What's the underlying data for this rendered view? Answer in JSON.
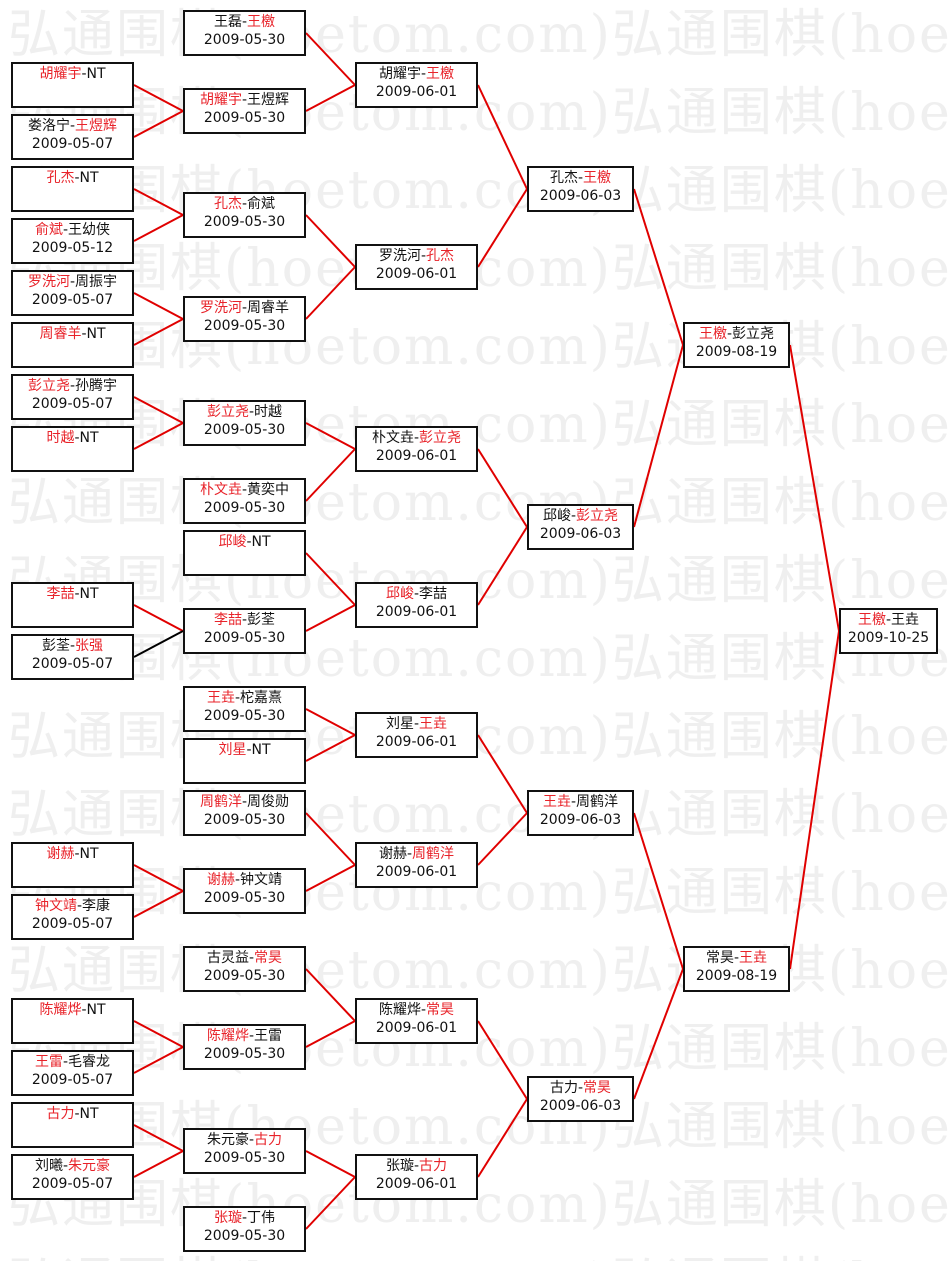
{
  "watermark": "弘通围棋(hoetom.com)",
  "colors": {
    "winner": "#e8232a",
    "link": "#e00000",
    "link_loser": "#000000",
    "border": "#111111"
  },
  "rounds": [
    {
      "matches": [
        {
          "id": "a1",
          "p1": "胡耀宇",
          "p2": "NT",
          "winner": 1,
          "date": "",
          "next": "b2"
        },
        {
          "id": "a2",
          "p1": "娄洛宁",
          "p2": "王煜辉",
          "winner": 2,
          "date": "2009-05-07",
          "next": "b2"
        },
        {
          "id": "a3",
          "p1": "孔杰",
          "p2": "NT",
          "winner": 1,
          "date": "",
          "next": "b3"
        },
        {
          "id": "a4",
          "p1": "俞斌",
          "p2": "王幼侠",
          "winner": 1,
          "date": "2009-05-12",
          "next": "b3"
        },
        {
          "id": "a5",
          "p1": "罗洗河",
          "p2": "周振宇",
          "winner": 1,
          "date": "2009-05-07",
          "next": "b4"
        },
        {
          "id": "a6",
          "p1": "周睿羊",
          "p2": "NT",
          "winner": 1,
          "date": "",
          "next": "b4"
        },
        {
          "id": "a7",
          "p1": "彭立尧",
          "p2": "孙腾宇",
          "winner": 1,
          "date": "2009-05-07",
          "next": "b5"
        },
        {
          "id": "a8",
          "p1": "时越",
          "p2": "NT",
          "winner": 1,
          "date": "",
          "next": "b5"
        },
        {
          "id": "a9",
          "p1": "李喆",
          "p2": "NT",
          "winner": 1,
          "date": "",
          "next": "b8"
        },
        {
          "id": "a10",
          "p1": "彭荃",
          "p2": "张强",
          "winner": 2,
          "date": "2009-05-07",
          "next": "b8",
          "link": "loser"
        },
        {
          "id": "a11",
          "p1": "谢赫",
          "p2": "NT",
          "winner": 1,
          "date": "",
          "next": "b12"
        },
        {
          "id": "a12",
          "p1": "钟文靖",
          "p2": "李康",
          "winner": 1,
          "date": "2009-05-07",
          "next": "b12"
        },
        {
          "id": "a13",
          "p1": "陈耀烨",
          "p2": "NT",
          "winner": 1,
          "date": "",
          "next": "b14"
        },
        {
          "id": "a14",
          "p1": "王雷",
          "p2": "毛睿龙",
          "winner": 1,
          "date": "2009-05-07",
          "next": "b14"
        },
        {
          "id": "a15",
          "p1": "古力",
          "p2": "NT",
          "winner": 1,
          "date": "",
          "next": "b15"
        },
        {
          "id": "a16",
          "p1": "刘曦",
          "p2": "朱元豪",
          "winner": 2,
          "date": "2009-05-07",
          "next": "b15"
        }
      ]
    },
    {
      "matches": [
        {
          "id": "b1",
          "p1": "王磊",
          "p2": "王檄",
          "winner": 2,
          "date": "2009-05-30",
          "next": "c1"
        },
        {
          "id": "b2",
          "p1": "胡耀宇",
          "p2": "王煜辉",
          "winner": 1,
          "date": "2009-05-30",
          "next": "c1"
        },
        {
          "id": "b3",
          "p1": "孔杰",
          "p2": "俞斌",
          "winner": 1,
          "date": "2009-05-30",
          "next": "c2"
        },
        {
          "id": "b4",
          "p1": "罗洗河",
          "p2": "周睿羊",
          "winner": 1,
          "date": "2009-05-30",
          "next": "c2"
        },
        {
          "id": "b5",
          "p1": "彭立尧",
          "p2": "时越",
          "winner": 1,
          "date": "2009-05-30",
          "next": "c3"
        },
        {
          "id": "b6",
          "p1": "朴文垚",
          "p2": "黄奕中",
          "winner": 1,
          "date": "2009-05-30",
          "next": "c3"
        },
        {
          "id": "b7",
          "p1": "邱峻",
          "p2": "NT",
          "winner": 1,
          "date": "",
          "next": "c4"
        },
        {
          "id": "b8",
          "p1": "李喆",
          "p2": "彭荃",
          "winner": 1,
          "date": "2009-05-30",
          "next": "c4"
        },
        {
          "id": "b9",
          "p1": "王垚",
          "p2": "柁嘉熹",
          "winner": 1,
          "date": "2009-05-30",
          "next": "c5"
        },
        {
          "id": "b10",
          "p1": "刘星",
          "p2": "NT",
          "winner": 1,
          "date": "",
          "next": "c5"
        },
        {
          "id": "b11",
          "p1": "周鹤洋",
          "p2": "周俊勋",
          "winner": 1,
          "date": "2009-05-30",
          "next": "c6"
        },
        {
          "id": "b12",
          "p1": "谢赫",
          "p2": "钟文靖",
          "winner": 1,
          "date": "2009-05-30",
          "next": "c6"
        },
        {
          "id": "b13",
          "p1": "古灵益",
          "p2": "常昊",
          "winner": 2,
          "date": "2009-05-30",
          "next": "c7"
        },
        {
          "id": "b14",
          "p1": "陈耀烨",
          "p2": "王雷",
          "winner": 1,
          "date": "2009-05-30",
          "next": "c7"
        },
        {
          "id": "b15",
          "p1": "朱元豪",
          "p2": "古力",
          "winner": 2,
          "date": "2009-05-30",
          "next": "c8"
        },
        {
          "id": "b16",
          "p1": "张璇",
          "p2": "丁伟",
          "winner": 1,
          "date": "2009-05-30",
          "next": "c8"
        }
      ]
    },
    {
      "matches": [
        {
          "id": "c1",
          "p1": "胡耀宇",
          "p2": "王檄",
          "winner": 2,
          "date": "2009-06-01",
          "next": "d1"
        },
        {
          "id": "c2",
          "p1": "罗洗河",
          "p2": "孔杰",
          "winner": 2,
          "date": "2009-06-01",
          "next": "d1"
        },
        {
          "id": "c3",
          "p1": "朴文垚",
          "p2": "彭立尧",
          "winner": 2,
          "date": "2009-06-01",
          "next": "d2"
        },
        {
          "id": "c4",
          "p1": "邱峻",
          "p2": "李喆",
          "winner": 1,
          "date": "2009-06-01",
          "next": "d2"
        },
        {
          "id": "c5",
          "p1": "刘星",
          "p2": "王垚",
          "winner": 2,
          "date": "2009-06-01",
          "next": "d3"
        },
        {
          "id": "c6",
          "p1": "谢赫",
          "p2": "周鹤洋",
          "winner": 2,
          "date": "2009-06-01",
          "next": "d3"
        },
        {
          "id": "c7",
          "p1": "陈耀烨",
          "p2": "常昊",
          "winner": 2,
          "date": "2009-06-01",
          "next": "d4"
        },
        {
          "id": "c8",
          "p1": "张璇",
          "p2": "古力",
          "winner": 2,
          "date": "2009-06-01",
          "next": "d4"
        }
      ]
    },
    {
      "matches": [
        {
          "id": "d1",
          "p1": "孔杰",
          "p2": "王檄",
          "winner": 2,
          "date": "2009-06-03",
          "next": "e1"
        },
        {
          "id": "d2",
          "p1": "邱峻",
          "p2": "彭立尧",
          "winner": 2,
          "date": "2009-06-03",
          "next": "e1"
        },
        {
          "id": "d3",
          "p1": "王垚",
          "p2": "周鹤洋",
          "winner": 1,
          "date": "2009-06-03",
          "next": "e2"
        },
        {
          "id": "d4",
          "p1": "古力",
          "p2": "常昊",
          "winner": 2,
          "date": "2009-06-03",
          "next": "e2"
        }
      ]
    },
    {
      "matches": [
        {
          "id": "e1",
          "p1": "王檄",
          "p2": "彭立尧",
          "winner": 1,
          "date": "2009-08-19",
          "next": "f1"
        },
        {
          "id": "e2",
          "p1": "常昊",
          "p2": "王垚",
          "winner": 2,
          "date": "2009-08-19",
          "next": "f1"
        }
      ]
    },
    {
      "matches": [
        {
          "id": "f1",
          "p1": "王檄",
          "p2": "王垚",
          "winner": 1,
          "date": "2009-10-25"
        }
      ]
    }
  ]
}
